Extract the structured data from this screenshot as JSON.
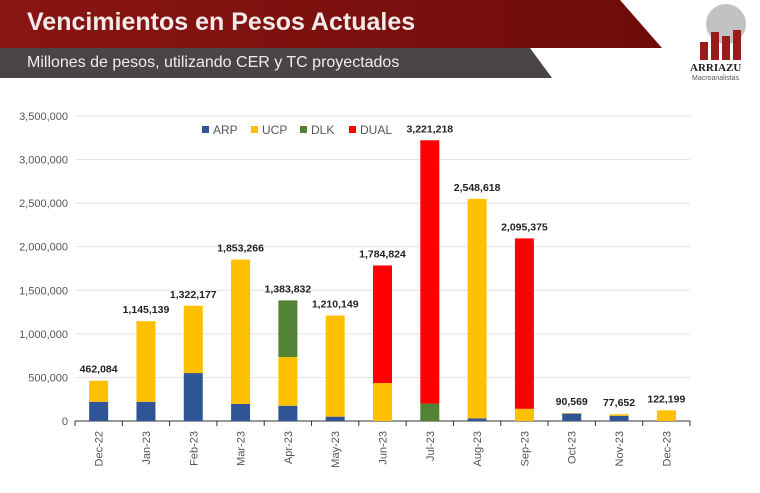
{
  "header": {
    "title": "Vencimientos en Pesos Actuales",
    "subtitle": "Millones de pesos, utilizando CER y TC proyectados",
    "logo_text": "ARRIAZU",
    "logo_sub": "Macroanalistas"
  },
  "chart_data": {
    "type": "bar",
    "stacked": true,
    "title": "",
    "xlabel": "",
    "ylabel": "",
    "ylim": [
      0,
      3500000
    ],
    "yticks": [
      "0",
      "500,000",
      "1,000,000",
      "1,500,000",
      "2,000,000",
      "2,500,000",
      "3,000,000",
      "3,500,000"
    ],
    "yticks_values": [
      0,
      500000,
      1000000,
      1500000,
      2000000,
      2500000,
      3000000,
      3500000
    ],
    "categories": [
      "Dec-22",
      "Jan-23",
      "Feb-23",
      "Mar-23",
      "Apr-23",
      "May-23",
      "Jun-23",
      "Jul-23",
      "Aug-23",
      "Sep-23",
      "Oct-23",
      "Nov-23",
      "Dec-23"
    ],
    "series": [
      {
        "name": "ARP",
        "color": "#2f5597",
        "values": [
          220000,
          220000,
          550000,
          195000,
          175000,
          50000,
          0,
          0,
          30000,
          0,
          85000,
          60000,
          0
        ]
      },
      {
        "name": "UCP",
        "color": "#ffc000",
        "values": [
          242084,
          925139,
          772177,
          1658266,
          560000,
          1160149,
          436000,
          0,
          2518618,
          140000,
          5569,
          17652,
          122199
        ]
      },
      {
        "name": "DLK",
        "color": "#548235",
        "values": [
          0,
          0,
          0,
          0,
          648832,
          0,
          0,
          200000,
          0,
          0,
          0,
          0,
          0
        ]
      },
      {
        "name": "DUAL",
        "color": "#ff0000",
        "values": [
          0,
          0,
          0,
          0,
          0,
          0,
          1348824,
          3021218,
          0,
          1955375,
          0,
          0,
          0
        ]
      }
    ],
    "totals_labels": [
      "462,084",
      "1,145,139",
      "1,322,177",
      "1,853,266",
      "1,383,832",
      "1,210,149",
      "1,784,824",
      "3,221,218",
      "2,548,618",
      "2,095,375",
      "90,569",
      "77,652",
      "122,199"
    ],
    "totals": [
      462084,
      1145139,
      1322177,
      1853266,
      1383832,
      1210149,
      1784824,
      3221218,
      2548618,
      2095375,
      90569,
      77652,
      122199
    ],
    "legend": "top-center",
    "grid": true
  }
}
